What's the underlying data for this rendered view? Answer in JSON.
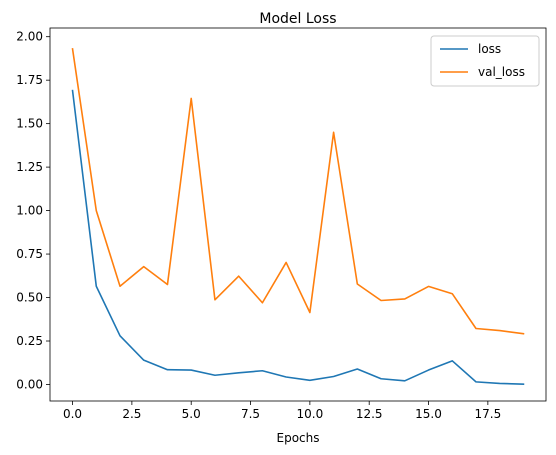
{
  "chart_data": {
    "type": "line",
    "title": "Model Loss",
    "xlabel": "Epochs",
    "ylabel": "",
    "xlim": [
      -0.95,
      19.95
    ],
    "ylim": [
      -0.095,
      2.05
    ],
    "xticks": [
      0.0,
      2.5,
      5.0,
      7.5,
      10.0,
      12.5,
      15.0,
      17.5
    ],
    "xtick_labels": [
      "0.0",
      "2.5",
      "5.0",
      "7.5",
      "10.0",
      "12.5",
      "15.0",
      "17.5"
    ],
    "yticks": [
      0.0,
      0.25,
      0.5,
      0.75,
      1.0,
      1.25,
      1.5,
      1.75,
      2.0
    ],
    "ytick_labels": [
      "0.00",
      "0.25",
      "0.50",
      "0.75",
      "1.00",
      "1.25",
      "1.50",
      "1.75",
      "2.00"
    ],
    "grid": false,
    "legend_position": "top-right",
    "x": [
      0,
      1,
      2,
      3,
      4,
      5,
      6,
      7,
      8,
      9,
      10,
      11,
      12,
      13,
      14,
      15,
      16,
      17,
      18,
      19
    ],
    "series": [
      {
        "name": "loss",
        "color": "#1f77b4",
        "values": [
          1.69,
          0.565,
          0.28,
          0.14,
          0.085,
          0.083,
          0.053,
          0.067,
          0.079,
          0.043,
          0.024,
          0.046,
          0.089,
          0.033,
          0.021,
          0.083,
          0.136,
          0.015,
          0.006,
          0.002
        ]
      },
      {
        "name": "val_loss",
        "color": "#ff7f0e",
        "values": [
          1.93,
          1.0,
          0.565,
          0.678,
          0.575,
          1.645,
          0.487,
          0.623,
          0.47,
          0.702,
          0.414,
          1.45,
          0.578,
          0.483,
          0.492,
          0.564,
          0.522,
          0.322,
          0.31,
          0.292
        ]
      }
    ]
  }
}
